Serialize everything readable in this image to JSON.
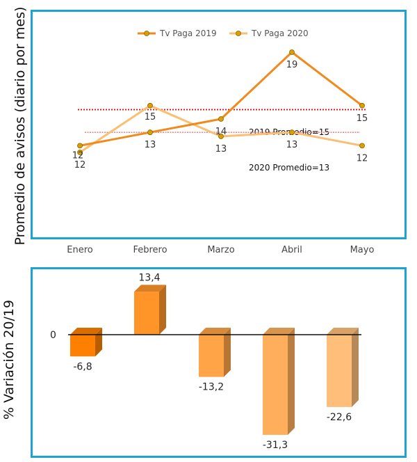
{
  "chart_data": [
    {
      "type": "line",
      "ylabel": "Promedio de avisos (diario por mes)",
      "categories": [
        "Enero",
        "Febrero",
        "Marzo",
        "Abril",
        "Mayo"
      ],
      "ylim": [
        10,
        21
      ],
      "legend_position": "top",
      "series": [
        {
          "name": "Tv Paga 2019",
          "values": [
            12,
            13,
            14,
            19,
            15
          ],
          "color": "#f08a1c",
          "labels": [
            "12",
            "13",
            "14",
            "19",
            "15"
          ]
        },
        {
          "name": "Tv Paga 2020",
          "values": [
            11.5,
            15,
            12.7,
            13,
            12
          ],
          "color": "#f9bf72",
          "labels": [
            "12",
            "15",
            "13",
            "13",
            "12"
          ]
        }
      ],
      "annotations": [
        {
          "text": "2019 Promedio=15",
          "value": 14.7,
          "color": "#e01010"
        },
        {
          "text": "2020 Promedio=13",
          "value": 13,
          "color": "#f07070"
        }
      ]
    },
    {
      "type": "bar",
      "ylabel": "% Variación 20/19",
      "categories": [
        "Enero",
        "Febrero",
        "Marzo",
        "Abril",
        "Mayo"
      ],
      "values": [
        -6.8,
        13.4,
        -13.2,
        -31.3,
        -22.6
      ],
      "labels": [
        "-6,8",
        "13,4",
        "-13,2",
        "-31,3",
        "-22,6"
      ],
      "zero_label": "0",
      "ylim": [
        -35,
        15
      ],
      "colors": [
        "#ff8000",
        "#ff9428",
        "#ffa447",
        "#ffaf5c",
        "#ffbe7a"
      ]
    }
  ]
}
